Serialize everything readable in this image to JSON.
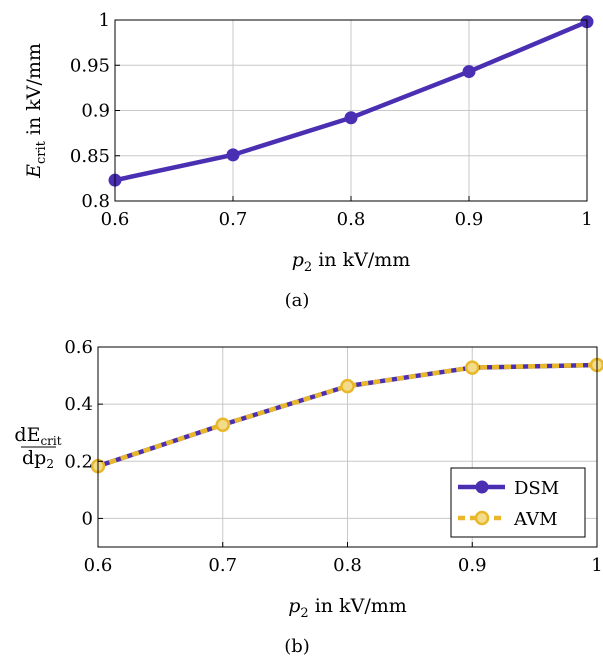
{
  "colors": {
    "dsm": "#4a2fb3",
    "avm": "#e9b82a",
    "grid": "#c8c8c8",
    "axis": "#000000"
  },
  "chart_data": [
    {
      "type": "line",
      "caption": "(a)",
      "xlabel": {
        "var": "p",
        "sub": "2",
        "unit": " in kV/mm"
      },
      "ylabel": {
        "var": "E",
        "sub": "crit",
        "unit": " in kV/mm"
      },
      "xlim": [
        0.6,
        1.0
      ],
      "ylim": [
        0.8,
        1.0
      ],
      "xticks": [
        0.6,
        0.7,
        0.8,
        0.9,
        1.0
      ],
      "xtick_labels": [
        "0.6",
        "0.7",
        "0.8",
        "0.9",
        "1"
      ],
      "yticks": [
        0.8,
        0.85,
        0.9,
        0.95,
        1.0
      ],
      "ytick_labels": [
        "0.8",
        "0.85",
        "0.9",
        "0.95",
        "1"
      ],
      "grid": true,
      "series": [
        {
          "x": [
            0.6,
            0.7,
            0.8,
            0.9,
            1.0
          ],
          "values": [
            0.823,
            0.851,
            0.892,
            0.943,
            0.998
          ]
        }
      ]
    },
    {
      "type": "line",
      "caption": "(b)",
      "xlabel": {
        "var": "p",
        "sub": "2",
        "unit": " in kV/mm"
      },
      "ylabel": {
        "num": "dE",
        "num_sub": "crit",
        "den": "dp",
        "den_sub": "2"
      },
      "xlim": [
        0.6,
        1.0
      ],
      "ylim": [
        -0.1,
        0.6
      ],
      "xticks": [
        0.6,
        0.7,
        0.8,
        0.9,
        1.0
      ],
      "xtick_labels": [
        "0.6",
        "0.7",
        "0.8",
        "0.9",
        "1"
      ],
      "yticks": [
        0,
        0.2,
        0.4,
        0.6
      ],
      "ytick_labels": [
        "0",
        "0.2",
        "0.4",
        "0.6"
      ],
      "grid": true,
      "legend": "bottom-right",
      "series": [
        {
          "name": "DSM",
          "x": [
            0.6,
            0.7,
            0.8,
            0.9,
            1.0
          ],
          "values": [
            0.183,
            0.328,
            0.463,
            0.528,
            0.537
          ]
        },
        {
          "name": "AVM",
          "x": [
            0.6,
            0.7,
            0.8,
            0.9,
            1.0
          ],
          "values": [
            0.183,
            0.328,
            0.463,
            0.528,
            0.537
          ]
        }
      ]
    }
  ]
}
